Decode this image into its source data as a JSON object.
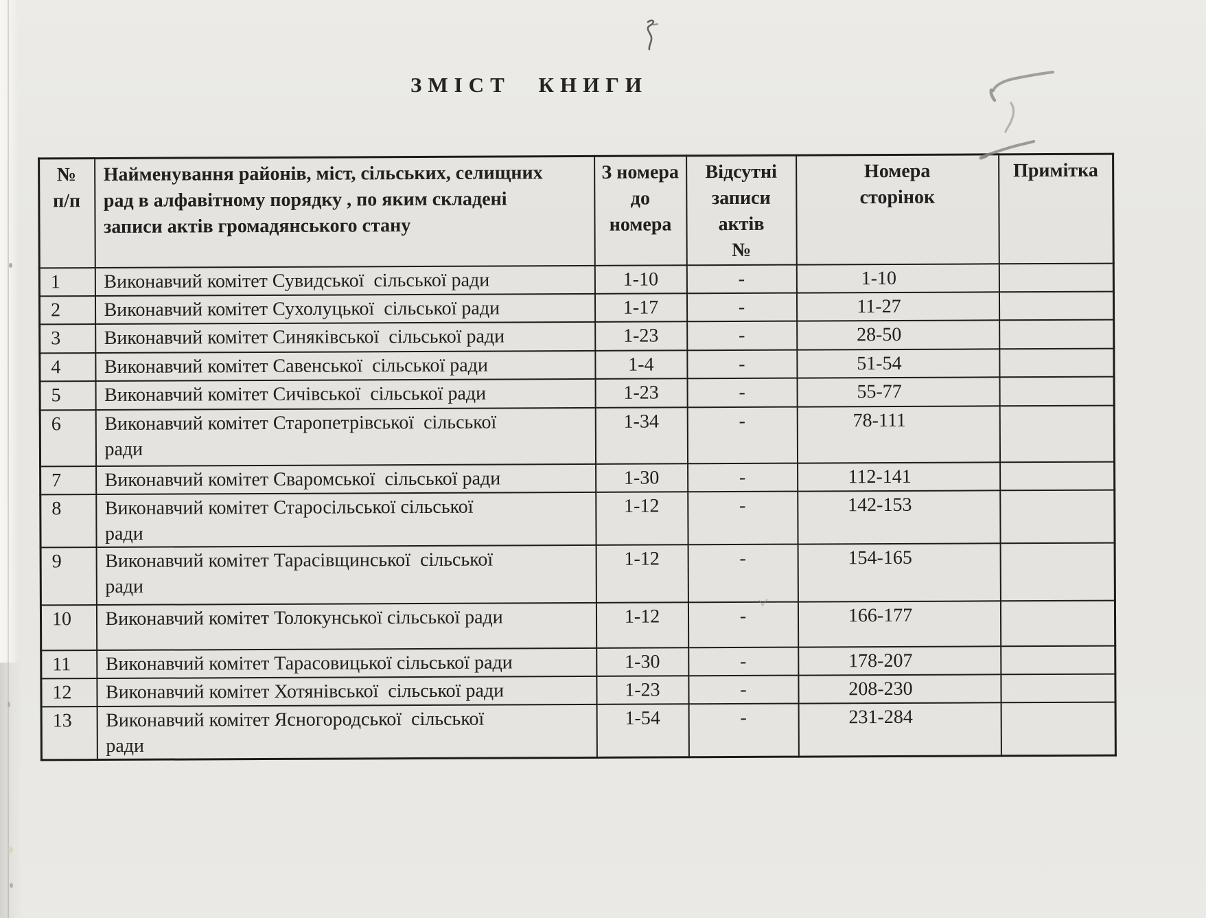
{
  "document": {
    "title": "ЗМІСТ КНИГИ"
  },
  "table": {
    "headers": {
      "num": "№\nп/п",
      "name": "Найменування районів, міст, сільських, селищних\nрад в алфавітному порядку , по яким складені\nзаписи актів громадянського стану",
      "from_to": "З номера\nдо\nномера",
      "missing": "Відсутні\nзаписи актів\n№",
      "pages": "Номера\nсторінок",
      "note": "Примітка"
    },
    "rows": [
      {
        "num": "1",
        "name": "Виконавчий комітет Сувидської  сільської ради",
        "from_to": "1-10",
        "missing": "-",
        "pages": "1-10",
        "note": ""
      },
      {
        "num": "2",
        "name": "Виконавчий комітет Сухолуцької  сільської ради",
        "from_to": "1-17",
        "missing": "-",
        "pages": "11-27",
        "note": ""
      },
      {
        "num": "3",
        "name": "Виконавчий комітет Синяківської  сільської ради",
        "from_to": "1-23",
        "missing": "-",
        "pages": "28-50",
        "note": ""
      },
      {
        "num": "4",
        "name": "Виконавчий комітет Савенської  сільської ради",
        "from_to": "1-4",
        "missing": "-",
        "pages": "51-54",
        "note": ""
      },
      {
        "num": "5",
        "name": "Виконавчий комітет Сичівської  сільської ради",
        "from_to": "1-23",
        "missing": "-",
        "pages": "55-77",
        "note": ""
      },
      {
        "num": "6",
        "name": "Виконавчий комітет Старопетрівської  сільської\nради",
        "from_to": "1-34",
        "missing": "-",
        "pages": "78-111",
        "note": ""
      },
      {
        "num": "7",
        "name": "Виконавчий комітет Сваромської  сільської ради",
        "from_to": "1-30",
        "missing": "-",
        "pages": "112-141",
        "note": ""
      },
      {
        "num": "8",
        "name": "Виконавчий комітет Старосільської сільської\nради",
        "from_to": "1-12",
        "missing": "-",
        "pages": "142-153",
        "note": ""
      },
      {
        "num": "9",
        "name": "Виконавчий комітет Тарасівщинської  сільської\nради",
        "from_to": "1-12",
        "missing": "-",
        "pages": "154-165",
        "note": ""
      },
      {
        "num": "10",
        "name": "Виконавчий комітет Толокунської сільської ради",
        "from_to": "1-12",
        "missing": "-",
        "pages": "166-177",
        "note": ""
      },
      {
        "num": "11",
        "name": "Виконавчий комітет Тарасовицької сільської ради",
        "from_to": "1-30",
        "missing": "-",
        "pages": "178-207",
        "note": ""
      },
      {
        "num": "12",
        "name": "Виконавчий комітет Хотянівської  сільської ради",
        "from_to": "1-23",
        "missing": "-",
        "pages": "208-230",
        "note": ""
      },
      {
        "num": "13",
        "name": "Виконавчий комітет Ясногородської  сільської\nради",
        "from_to": "1-54",
        "missing": "-",
        "pages": "231-284",
        "note": ""
      }
    ]
  },
  "annotations": {
    "pencil_roman_numeral": "I",
    "ink_squiggle_mark": "ſ"
  },
  "colors": {
    "paper": "#e8e7e3",
    "ink": "#1d1c1a",
    "pencil": "#8b8a85"
  }
}
